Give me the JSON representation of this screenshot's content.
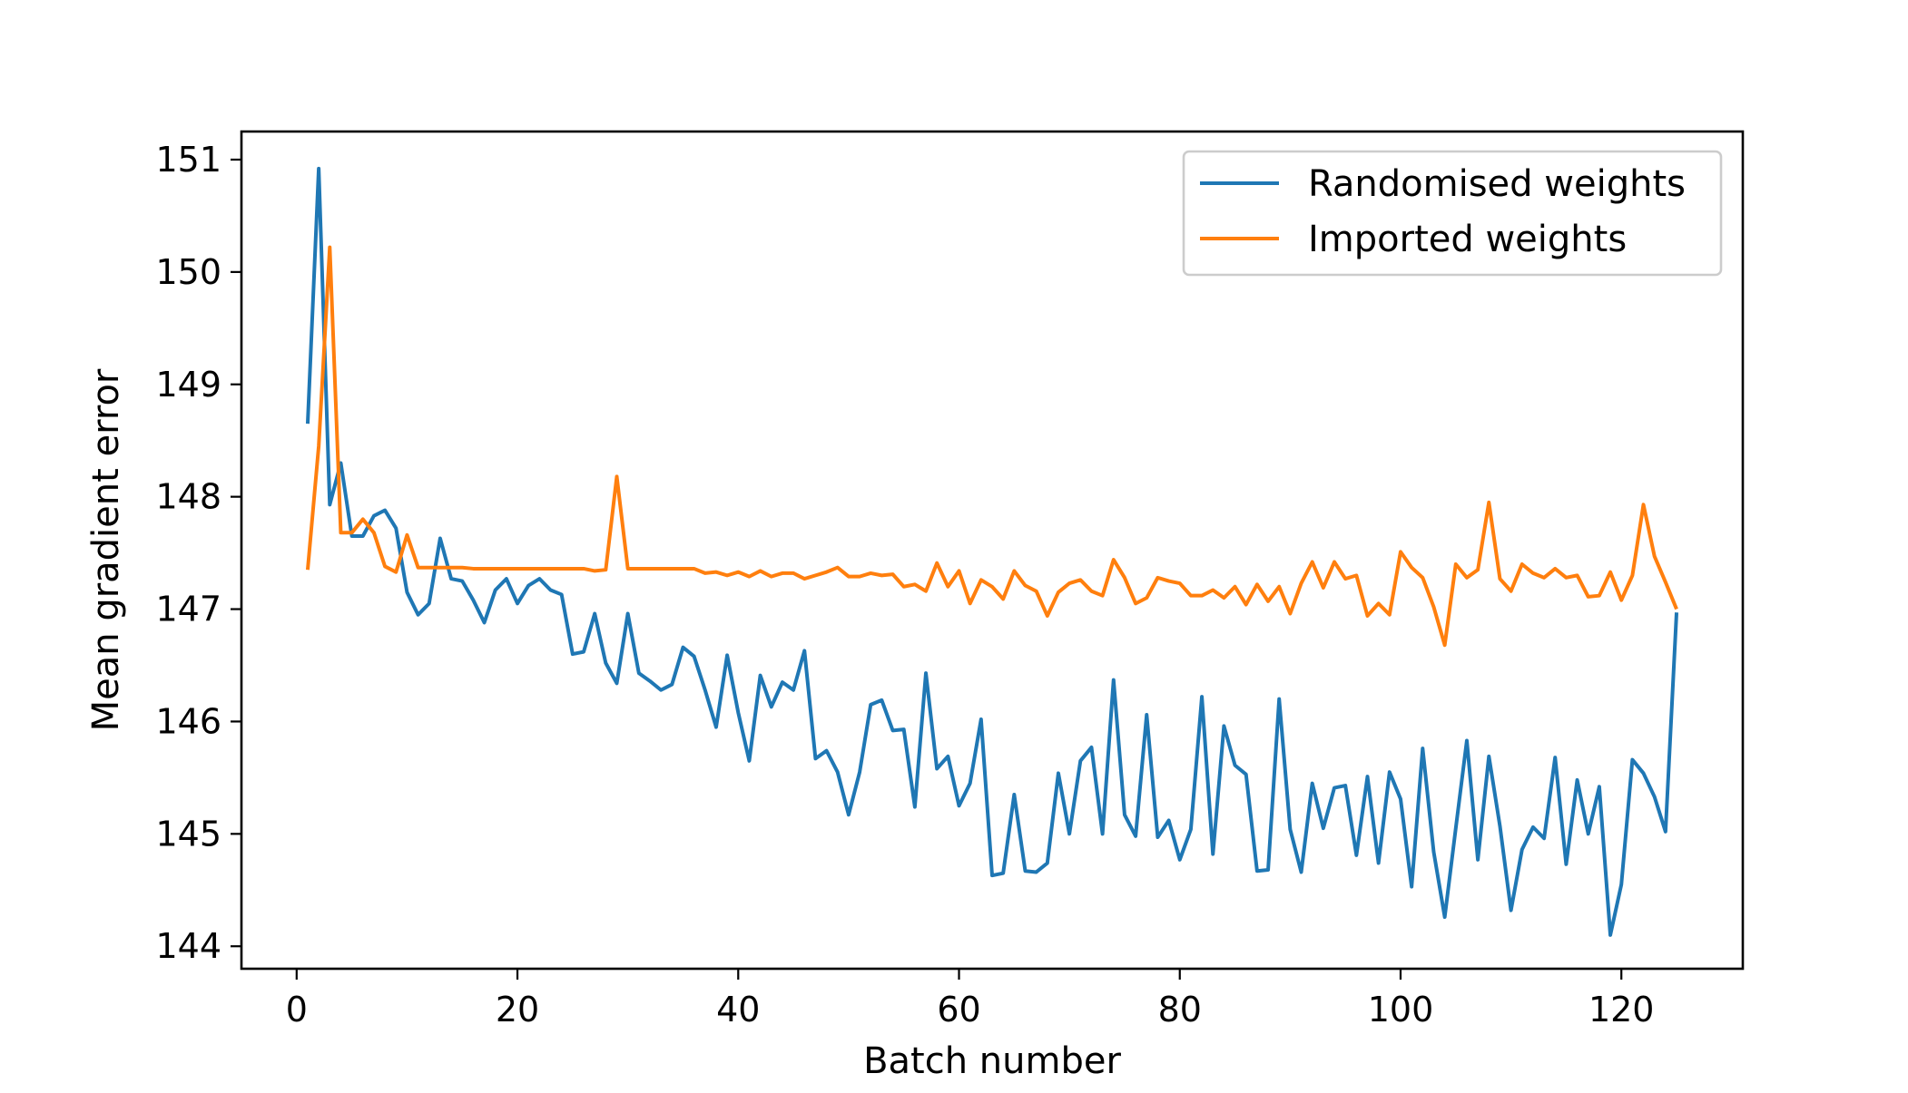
{
  "chart_data": {
    "type": "line",
    "title": "",
    "xlabel": "Batch number",
    "ylabel": "Mean gradient error",
    "xlim": [
      -5,
      131
    ],
    "ylim": [
      143.8,
      151.25
    ],
    "xticks": [
      0,
      20,
      40,
      60,
      80,
      100,
      120
    ],
    "yticks": [
      144,
      145,
      146,
      147,
      148,
      149,
      150,
      151
    ],
    "grid": false,
    "legend_position": "top-right",
    "x": [
      1,
      2,
      3,
      4,
      5,
      6,
      7,
      8,
      9,
      10,
      11,
      12,
      13,
      14,
      15,
      16,
      17,
      18,
      19,
      20,
      21,
      22,
      23,
      24,
      25,
      26,
      27,
      28,
      29,
      30,
      31,
      32,
      33,
      34,
      35,
      36,
      37,
      38,
      39,
      40,
      41,
      42,
      43,
      44,
      45,
      46,
      47,
      48,
      49,
      50,
      51,
      52,
      53,
      54,
      55,
      56,
      57,
      58,
      59,
      60,
      61,
      62,
      63,
      64,
      65,
      66,
      67,
      68,
      69,
      70,
      71,
      72,
      73,
      74,
      75,
      76,
      77,
      78,
      79,
      80,
      81,
      82,
      83,
      84,
      85,
      86,
      87,
      88,
      89,
      90,
      91,
      92,
      93,
      94,
      95,
      96,
      97,
      98,
      99,
      100,
      101,
      102,
      103,
      104,
      105,
      106,
      107,
      108,
      109,
      110,
      111,
      112,
      113,
      114,
      115,
      116,
      117,
      118,
      119,
      120,
      121,
      122,
      123,
      124,
      125
    ],
    "series": [
      {
        "name": "Randomised weights",
        "color": "#1f77b4",
        "values": [
          148.65,
          150.92,
          147.93,
          148.3,
          147.65,
          147.65,
          147.83,
          147.88,
          147.72,
          147.15,
          146.95,
          147.05,
          147.63,
          147.27,
          147.25,
          147.08,
          146.88,
          147.17,
          147.27,
          147.05,
          147.21,
          147.27,
          147.17,
          147.13,
          146.6,
          146.62,
          146.96,
          146.52,
          146.34,
          146.96,
          146.43,
          146.36,
          146.28,
          146.33,
          146.66,
          146.58,
          146.28,
          145.95,
          146.59,
          146.08,
          145.65,
          146.41,
          146.13,
          146.35,
          146.28,
          146.63,
          145.67,
          145.74,
          145.55,
          145.17,
          145.55,
          146.15,
          146.19,
          145.92,
          145.93,
          145.24,
          146.43,
          145.58,
          145.69,
          145.25,
          145.45,
          146.02,
          144.63,
          144.65,
          145.35,
          144.67,
          144.66,
          144.74,
          145.54,
          145.0,
          145.65,
          145.77,
          145.0,
          146.37,
          145.17,
          144.98,
          146.06,
          144.97,
          145.12,
          144.77,
          145.04,
          146.22,
          144.82,
          145.96,
          145.61,
          145.53,
          144.67,
          144.68,
          146.2,
          145.04,
          144.66,
          145.45,
          145.05,
          145.41,
          145.43,
          144.81,
          145.51,
          144.74,
          145.55,
          145.31,
          144.53,
          145.76,
          144.84,
          144.26,
          145.05,
          145.83,
          144.77,
          145.69,
          145.07,
          144.32,
          144.86,
          145.06,
          144.96,
          145.68,
          144.73,
          145.48,
          145.0,
          145.42,
          144.1,
          144.55,
          145.66,
          145.54,
          145.33,
          145.02,
          146.97
        ]
      },
      {
        "name": "Imported weights",
        "color": "#ff7f0e",
        "values": [
          147.35,
          148.45,
          150.22,
          147.68,
          147.68,
          147.8,
          147.68,
          147.38,
          147.33,
          147.66,
          147.37,
          147.37,
          147.37,
          147.37,
          147.37,
          147.36,
          147.36,
          147.36,
          147.36,
          147.36,
          147.36,
          147.36,
          147.36,
          147.36,
          147.36,
          147.36,
          147.34,
          147.35,
          148.18,
          147.36,
          147.36,
          147.36,
          147.36,
          147.36,
          147.36,
          147.36,
          147.32,
          147.33,
          147.3,
          147.33,
          147.29,
          147.34,
          147.29,
          147.32,
          147.32,
          147.27,
          147.3,
          147.33,
          147.37,
          147.29,
          147.29,
          147.32,
          147.3,
          147.31,
          147.2,
          147.22,
          147.16,
          147.41,
          147.2,
          147.34,
          147.05,
          147.26,
          147.2,
          147.09,
          147.34,
          147.21,
          147.16,
          146.94,
          147.15,
          147.23,
          147.26,
          147.16,
          147.12,
          147.44,
          147.28,
          147.05,
          147.1,
          147.28,
          147.25,
          147.23,
          147.12,
          147.12,
          147.17,
          147.1,
          147.2,
          147.04,
          147.22,
          147.07,
          147.2,
          146.96,
          147.23,
          147.42,
          147.19,
          147.42,
          147.27,
          147.3,
          146.94,
          147.05,
          146.95,
          147.51,
          147.37,
          147.28,
          147.02,
          146.68,
          147.4,
          147.28,
          147.35,
          147.95,
          147.27,
          147.16,
          147.4,
          147.32,
          147.28,
          147.36,
          147.28,
          147.3,
          147.11,
          147.12,
          147.33,
          147.08,
          147.3,
          147.93,
          147.47,
          147.24,
          147.0
        ]
      }
    ]
  }
}
